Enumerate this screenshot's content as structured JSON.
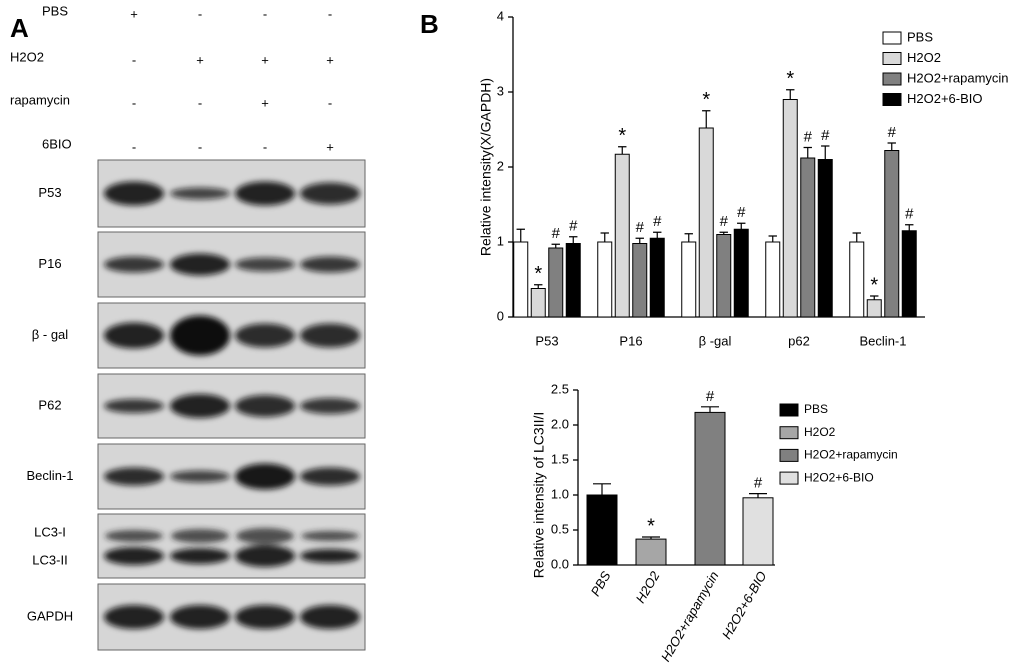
{
  "panel_a": {
    "label": "A",
    "treatments": [
      {
        "name": "PBS",
        "signs": [
          "+",
          "-",
          "-",
          "-"
        ]
      },
      {
        "name": "H2O2",
        "signs": [
          "-",
          "+",
          "+",
          "+"
        ]
      },
      {
        "name": "rapamycin",
        "signs": [
          "-",
          "-",
          "+",
          "-"
        ]
      },
      {
        "name": "6BIO",
        "signs": [
          "-",
          "-",
          "-",
          "+"
        ]
      }
    ],
    "bands": [
      {
        "labels": [
          "P53"
        ]
      },
      {
        "labels": [
          "P16"
        ]
      },
      {
        "labels": [
          "β - gal"
        ]
      },
      {
        "labels": [
          "P62"
        ]
      },
      {
        "labels": [
          "Beclin-1"
        ]
      },
      {
        "labels": [
          "LC3-I",
          "LC3-II"
        ]
      },
      {
        "labels": [
          "GAPDH"
        ]
      }
    ]
  },
  "panel_b_label": "B",
  "chart_data": [
    {
      "type": "bar",
      "ylabel": "Relative intensity(X/GAPDH)",
      "categories": [
        "P53",
        "P16",
        "β -gal",
        "p62",
        "Beclin-1"
      ],
      "series": [
        {
          "name": "PBS",
          "color": "#ffffff",
          "values": [
            1.0,
            1.0,
            1.0,
            1.0,
            1.0
          ],
          "errors": [
            0.17,
            0.12,
            0.11,
            0.08,
            0.12
          ]
        },
        {
          "name": "H2O2",
          "color": "#d9d9d9",
          "values": [
            0.38,
            2.17,
            2.52,
            2.9,
            0.23
          ],
          "errors": [
            0.05,
            0.1,
            0.23,
            0.13,
            0.05
          ],
          "marks": [
            "*",
            "*",
            "*",
            "*",
            "*"
          ]
        },
        {
          "name": "H2O2+rapamycin",
          "color": "#808080",
          "values": [
            0.92,
            0.98,
            1.1,
            2.12,
            2.22
          ],
          "errors": [
            0.05,
            0.07,
            0.03,
            0.14,
            0.1
          ],
          "marks": [
            "#",
            "#",
            "#",
            "#",
            "#"
          ]
        },
        {
          "name": "H2O2+6-BIO",
          "color": "#000000",
          "values": [
            0.98,
            1.05,
            1.17,
            2.1,
            1.15
          ],
          "errors": [
            0.09,
            0.08,
            0.08,
            0.18,
            0.08
          ],
          "marks": [
            "#",
            "#",
            "#",
            "#",
            "#"
          ]
        }
      ],
      "ylim": [
        0,
        4
      ],
      "yticks": [
        0,
        1,
        2,
        3,
        4
      ],
      "legend": "upper right"
    },
    {
      "type": "bar",
      "ylabel": "Relative intensity of LC3II/I",
      "categories": [
        "PBS",
        "H2O2",
        "H2O2+rapamycin",
        "H2O2+6-BIO"
      ],
      "values": [
        1.0,
        0.37,
        2.18,
        0.96
      ],
      "errors": [
        0.16,
        0.03,
        0.08,
        0.06
      ],
      "colors": [
        "#000000",
        "#a6a6a6",
        "#808080",
        "#e0e0e0"
      ],
      "marks": [
        null,
        "*",
        "#",
        "#"
      ],
      "ylim": [
        0,
        2.5
      ],
      "yticks": [
        {
          "value": 0,
          "label": "0.0"
        },
        {
          "value": 0.5,
          "label": "0.5"
        },
        {
          "value": 1,
          "label": "1.0"
        },
        {
          "value": 1.5,
          "label": "1.5"
        },
        {
          "value": 2,
          "label": "2.0"
        },
        {
          "value": 2.5,
          "label": "2.5"
        }
      ],
      "legend": "right"
    }
  ]
}
